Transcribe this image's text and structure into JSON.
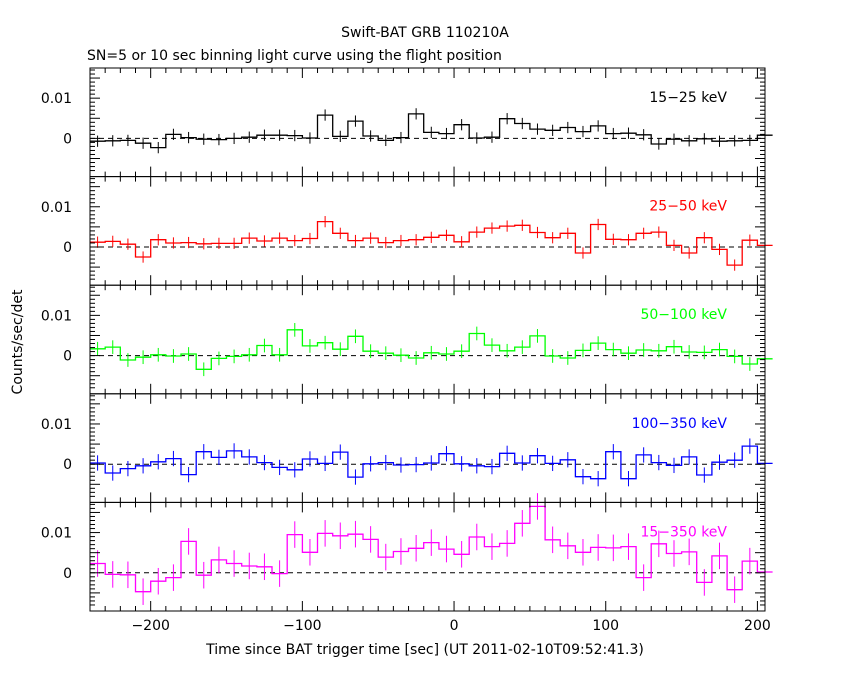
{
  "title_line1": "Swift-BAT GRB 110210A",
  "title_line2": "SN=5 or 10 sec binning light curve using the flight position",
  "xlabel": "Time since BAT trigger time [sec] (UT 2011-02-10T09:52:41.3)",
  "ylabel": "Counts/sec/det",
  "chart_data": {
    "type": "line",
    "x_range": [
      -240,
      205
    ],
    "x_ticks": [
      -200,
      -100,
      0,
      100,
      200
    ],
    "y_range": [
      -0.0095,
      0.0175
    ],
    "y_ticks": [
      0,
      0.01
    ],
    "y_tick_labels": [
      "0",
      "0.01"
    ],
    "x_tick_labels": [
      "−200",
      "−100",
      "0",
      "100",
      "200"
    ],
    "bin_width": 10,
    "x_start": -235,
    "panels": [
      {
        "label": "15−25 keV",
        "color": "#000000",
        "error": 0.0014,
        "values": [
          -0.0007,
          -0.0006,
          -0.0005,
          -0.0012,
          -0.0023,
          0.001,
          0.0002,
          -0.0002,
          -0.0003,
          0.0,
          0.0003,
          0.0008,
          0.0008,
          0.0007,
          0.0001,
          0.0058,
          0.0005,
          0.0043,
          0.0006,
          -0.0005,
          0.0002,
          0.0061,
          0.0015,
          0.0012,
          0.0034,
          0.0001,
          0.0003,
          0.0049,
          0.0037,
          0.0023,
          0.002,
          0.0027,
          0.0017,
          0.0031,
          0.0012,
          0.0013,
          0.0009,
          -0.0014,
          -0.0002,
          -0.0006,
          -0.0001,
          -0.0007,
          -0.0006,
          -0.0005,
          0.0008
        ]
      },
      {
        "label": "25−50 keV",
        "color": "#ff0000",
        "error": 0.0014,
        "values": [
          0.0012,
          0.0014,
          0.0007,
          -0.0025,
          0.0018,
          0.001,
          0.0011,
          0.0008,
          0.0009,
          0.0009,
          0.0022,
          0.0015,
          0.0022,
          0.0016,
          0.0021,
          0.0063,
          0.0034,
          0.0016,
          0.0022,
          0.0011,
          0.0016,
          0.0018,
          0.0024,
          0.0029,
          0.0013,
          0.0037,
          0.0047,
          0.0052,
          0.0054,
          0.0036,
          0.0023,
          0.0034,
          -0.0015,
          0.0056,
          0.0019,
          0.0018,
          0.0034,
          0.0037,
          0.0004,
          -0.0015,
          0.0023,
          -0.0006,
          -0.0045,
          0.0017,
          0.0004
        ]
      },
      {
        "label": "50−100 keV",
        "color": "#00ff00",
        "error": 0.0017,
        "values": [
          0.0017,
          0.0021,
          -0.0011,
          -0.0004,
          0.0002,
          -0.0001,
          0.0004,
          -0.0034,
          -0.0007,
          -0.0002,
          0.0002,
          0.0025,
          0.0002,
          0.0064,
          0.0024,
          0.0032,
          0.0016,
          0.0048,
          0.0011,
          0.0006,
          0.0001,
          -0.0006,
          0.0007,
          0.0004,
          0.0011,
          0.0055,
          0.0026,
          0.0012,
          0.0021,
          0.0049,
          -0.0001,
          -0.0006,
          0.0013,
          0.0031,
          0.0015,
          0.0006,
          0.0014,
          0.0012,
          0.0022,
          0.0009,
          0.0008,
          0.0015,
          -0.0002,
          -0.0021,
          -0.0008
        ]
      },
      {
        "label": "100−350 keV",
        "color": "#0000ff",
        "error": 0.0019,
        "values": [
          0.0003,
          -0.0022,
          -0.0011,
          -0.0004,
          0.0006,
          0.0014,
          -0.0026,
          0.0031,
          0.0017,
          0.0033,
          0.0018,
          0.0004,
          -0.0008,
          -0.0014,
          0.0013,
          0.0002,
          0.003,
          -0.0032,
          0.0001,
          0.0004,
          -0.0002,
          -0.0001,
          0.0003,
          0.0026,
          0.0001,
          -0.0004,
          -0.0006,
          0.0027,
          0.0003,
          0.0021,
          0.0002,
          0.0011,
          -0.0031,
          -0.0036,
          0.0031,
          -0.0036,
          0.0023,
          0.0004,
          -0.0003,
          0.0018,
          -0.0027,
          0.0005,
          0.001,
          0.0045,
          0.0002
        ]
      },
      {
        "label": "15−350 keV",
        "color": "#ff00ff",
        "error": 0.0033,
        "values": [
          0.0023,
          -0.0004,
          -0.0005,
          -0.0047,
          -0.0021,
          -0.0012,
          0.0078,
          -0.0006,
          0.0032,
          0.0023,
          0.0017,
          0.0015,
          -0.0002,
          0.0095,
          0.0051,
          0.0098,
          0.0092,
          0.0096,
          0.0083,
          0.0039,
          0.0053,
          0.0061,
          0.0075,
          0.0059,
          0.0046,
          0.0089,
          0.0065,
          0.0073,
          0.0123,
          0.0165,
          0.0082,
          0.0067,
          0.0051,
          0.0063,
          0.0062,
          0.0065,
          -0.0012,
          0.0072,
          0.0048,
          0.0052,
          -0.0024,
          0.0042,
          -0.0042,
          0.0029,
          0.0002
        ]
      }
    ]
  }
}
